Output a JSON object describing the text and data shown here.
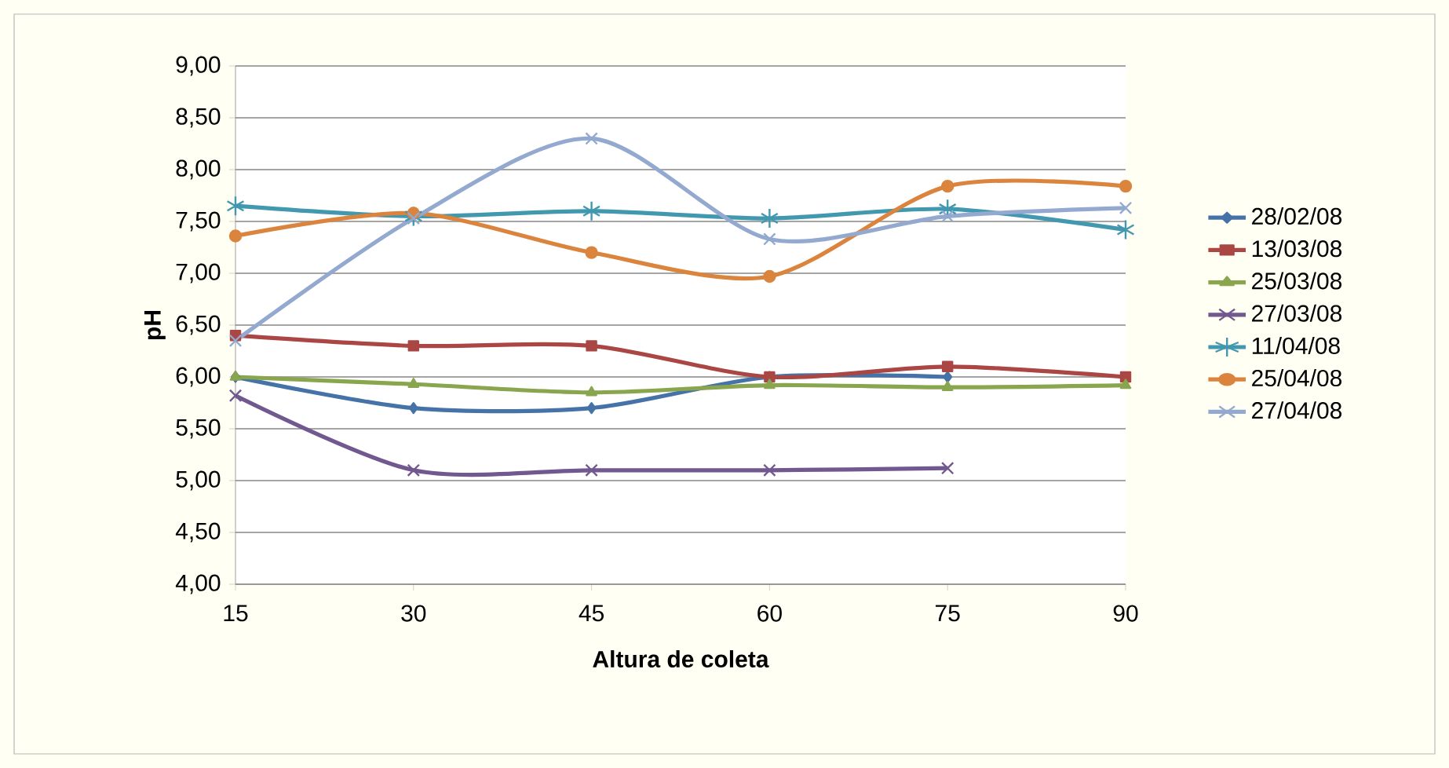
{
  "chart_data": {
    "type": "line",
    "xlabel": "Altura de coleta",
    "ylabel": "pH",
    "categories": [
      "15",
      "30",
      "45",
      "60",
      "75",
      "90"
    ],
    "ylim": [
      4,
      9
    ],
    "yticks": [
      {
        "value": 4,
        "label": "4,00"
      },
      {
        "value": 4.5,
        "label": "4,50"
      },
      {
        "value": 5,
        "label": "5,00"
      },
      {
        "value": 5.5,
        "label": "5,50"
      },
      {
        "value": 6,
        "label": "6,00"
      },
      {
        "value": 6.5,
        "label": "6,50"
      },
      {
        "value": 7,
        "label": "7,00"
      },
      {
        "value": 7.5,
        "label": "7,50"
      },
      {
        "value": 8,
        "label": "8,00"
      },
      {
        "value": 8.5,
        "label": "8,50"
      },
      {
        "value": 9,
        "label": "9,00"
      }
    ],
    "grid": "y",
    "legend": "right",
    "series": [
      {
        "name": "28/02/08",
        "color": "#4572a7",
        "marker": "diamond",
        "values": [
          6.0,
          5.7,
          5.7,
          6.0,
          6.0,
          null
        ]
      },
      {
        "name": "13/03/08",
        "color": "#aa4643",
        "marker": "square",
        "values": [
          6.4,
          6.3,
          6.3,
          6.0,
          6.1,
          6.0
        ]
      },
      {
        "name": "25/03/08",
        "color": "#89a54e",
        "marker": "triangle",
        "values": [
          6.0,
          5.93,
          5.85,
          5.92,
          5.9,
          5.92
        ]
      },
      {
        "name": "27/03/08",
        "color": "#71588f",
        "marker": "cross",
        "values": [
          5.82,
          5.1,
          5.1,
          5.1,
          5.12,
          null
        ]
      },
      {
        "name": "11/04/08",
        "color": "#4198af",
        "marker": "cross",
        "values": [
          7.65,
          7.55,
          7.6,
          7.53,
          7.62,
          7.42
        ]
      },
      {
        "name": "25/04/08",
        "color": "#db843d",
        "marker": "circle",
        "values": [
          7.36,
          7.58,
          7.2,
          6.97,
          7.84,
          7.84
        ]
      },
      {
        "name": "27/04/08",
        "color": "#93a9cf",
        "marker": "cross",
        "values": [
          6.35,
          7.53,
          8.3,
          7.33,
          7.55,
          7.63
        ]
      }
    ]
  }
}
